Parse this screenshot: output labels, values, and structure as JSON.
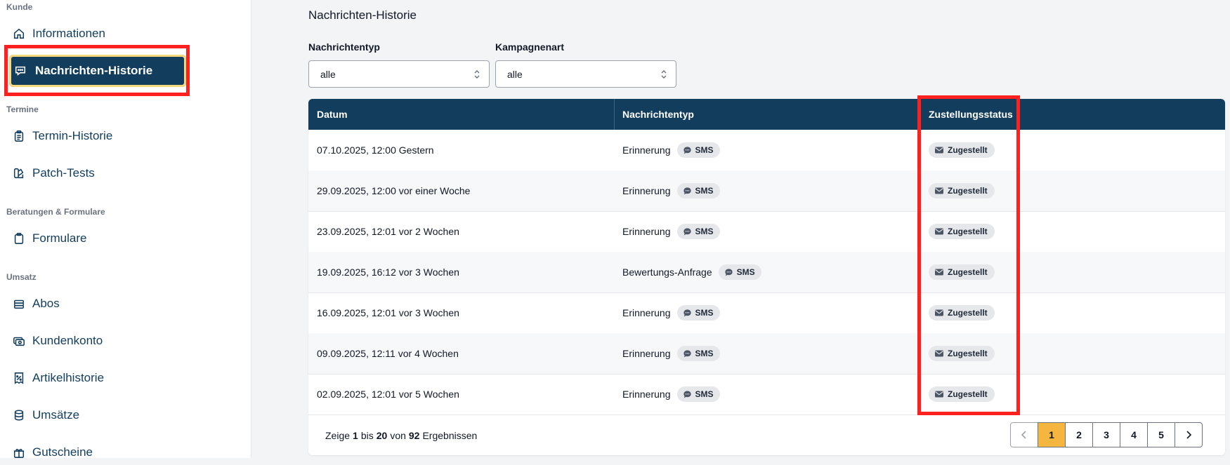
{
  "sidebar": {
    "sections": [
      {
        "label": "Kunde"
      },
      {
        "label": "Termine"
      },
      {
        "label": "Beratungen & Formulare"
      },
      {
        "label": "Umsatz"
      }
    ],
    "items": [
      {
        "label": "Informationen",
        "icon": "home-icon"
      },
      {
        "label": "Nachrichten-Historie",
        "icon": "message-icon",
        "active": true
      },
      {
        "label": "Termin-Historie",
        "icon": "clipboard-list-icon"
      },
      {
        "label": "Patch-Tests",
        "icon": "swatch-icon"
      },
      {
        "label": "Formulare",
        "icon": "clipboard-icon"
      },
      {
        "label": "Abos",
        "icon": "stack-icon"
      },
      {
        "label": "Kundenkonto",
        "icon": "cash-icon"
      },
      {
        "label": "Artikelhistorie",
        "icon": "receipt-percent-icon"
      },
      {
        "label": "Umsätze",
        "icon": "database-icon"
      },
      {
        "label": "Gutscheine",
        "icon": "gift-icon"
      }
    ]
  },
  "main": {
    "title": "Nachrichten-Historie",
    "filters": [
      {
        "label": "Nachrichtentyp",
        "value": "alle"
      },
      {
        "label": "Kampagnenart",
        "value": "alle"
      }
    ],
    "table": {
      "columns": [
        "Datum",
        "Nachrichtentyp",
        "Zustellungsstatus"
      ],
      "rows": [
        {
          "date": "07.10.2025, 12:00 Gestern",
          "type": "Erinnerung",
          "channel": "SMS",
          "status": "Zugestellt"
        },
        {
          "date": "29.09.2025, 12:00 vor einer Woche",
          "type": "Erinnerung",
          "channel": "SMS",
          "status": "Zugestellt"
        },
        {
          "date": "23.09.2025, 12:01 vor 2 Wochen",
          "type": "Erinnerung",
          "channel": "SMS",
          "status": "Zugestellt"
        },
        {
          "date": "19.09.2025, 16:12 vor 3 Wochen",
          "type": "Bewertungs-Anfrage",
          "channel": "SMS",
          "status": "Zugestellt"
        },
        {
          "date": "16.09.2025, 12:01 vor 3 Wochen",
          "type": "Erinnerung",
          "channel": "SMS",
          "status": "Zugestellt"
        },
        {
          "date": "09.09.2025, 12:11 vor 4 Wochen",
          "type": "Erinnerung",
          "channel": "SMS",
          "status": "Zugestellt"
        },
        {
          "date": "02.09.2025, 12:01 vor 5 Wochen",
          "type": "Erinnerung",
          "channel": "SMS",
          "status": "Zugestellt"
        }
      ]
    },
    "pagination": {
      "summary_prefix": "Zeige",
      "from": "1",
      "mid1": "bis",
      "to": "20",
      "mid2": "von",
      "total": "92",
      "suffix": "Ergebnissen",
      "pages": [
        "1",
        "2",
        "3",
        "4",
        "5"
      ],
      "current": "1"
    }
  },
  "colors": {
    "brand": "#123d5c",
    "active_page": "#f4b63f",
    "highlight": "#ff2020"
  }
}
